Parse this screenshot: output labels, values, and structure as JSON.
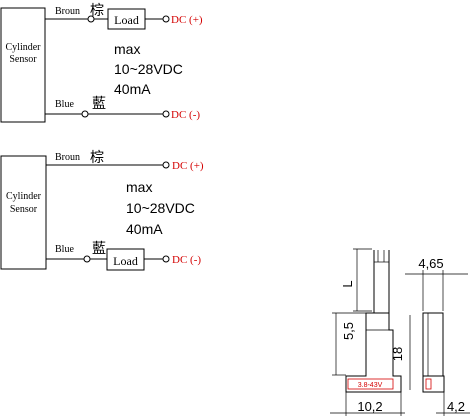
{
  "diagram_1": {
    "sensor_line1": "Cylinder",
    "sensor_line2": "Sensor",
    "brown_label": "Broun",
    "brown_cn": "棕",
    "blue_label": "Blue",
    "blue_cn": "藍",
    "load_label": "Load",
    "dc_plus": "DC (+)",
    "dc_minus": "DC (-)",
    "spec_max": "max",
    "spec_voltage": "10~28VDC",
    "spec_current": "40mA"
  },
  "diagram_2": {
    "sensor_line1": "Cylinder",
    "sensor_line2": "Sensor",
    "brown_label": "Broun",
    "brown_cn": "棕",
    "blue_label": "Blue",
    "blue_cn": "藍",
    "load_label": "Load",
    "dc_plus": "DC (+)",
    "dc_minus": "DC (-)",
    "spec_max": "max",
    "spec_voltage": "10~28VDC",
    "spec_current": "40mA"
  },
  "dimensions": {
    "dim_L": "L",
    "dim_465": "4,65",
    "dim_55": "5,5",
    "dim_18": "18",
    "dim_102": "10,2",
    "dim_42": "4,2",
    "body_label": "3.8-43V"
  }
}
